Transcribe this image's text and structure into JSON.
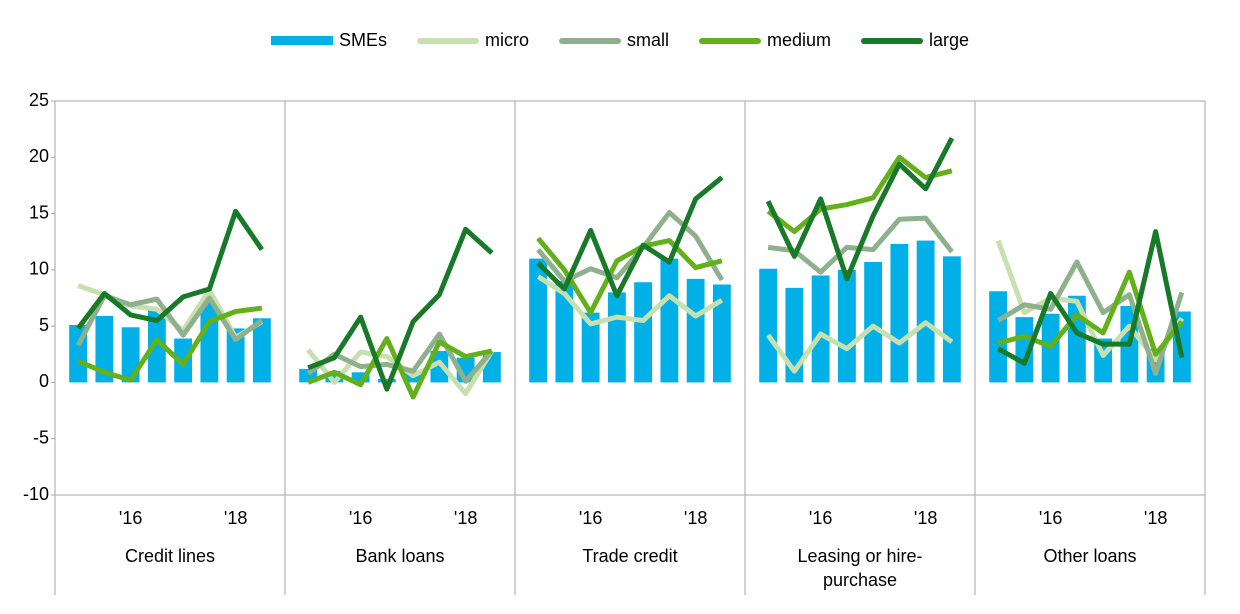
{
  "chart_data": {
    "type": "bar-line-panels",
    "panels": [
      "Credit lines",
      "Bank loans",
      "Trade credit",
      "Leasing or hire-purchase",
      "Other loans"
    ],
    "categories": [
      null,
      null,
      "'16",
      null,
      null,
      null,
      "'18",
      null
    ],
    "ylim": [
      -10,
      25
    ],
    "yticks": [
      -10,
      -5,
      0,
      5,
      10,
      15,
      20,
      25
    ],
    "grid": false,
    "series": [
      {
        "name": "SMEs",
        "kind": "bar",
        "color": "#00b0e6",
        "values": [
          [
            5.1,
            5.9,
            4.9,
            6.4,
            3.9,
            7.2,
            4.8,
            5.7
          ],
          [
            1.2,
            1.0,
            0.9,
            0.3,
            1.0,
            2.8,
            2.2,
            2.7
          ],
          [
            11.0,
            9.0,
            6.2,
            8.0,
            8.9,
            11.0,
            9.2,
            8.7
          ],
          [
            10.1,
            8.4,
            9.5,
            10.0,
            10.7,
            12.3,
            12.6,
            11.2
          ],
          [
            8.1,
            5.8,
            6.1,
            7.7,
            3.9,
            6.8,
            3.0,
            6.3
          ]
        ]
      },
      {
        "name": "micro",
        "kind": "line",
        "color": "#c8dfae",
        "values": [
          [
            8.6,
            7.8,
            6.8,
            6.5,
            4.6,
            8.2,
            4.0,
            5.4
          ],
          [
            2.9,
            0.0,
            2.7,
            2.3,
            0.6,
            1.8,
            -1.0,
            2.8
          ],
          [
            9.4,
            7.9,
            5.2,
            5.8,
            5.5,
            7.7,
            5.9,
            7.3
          ],
          [
            4.2,
            1.0,
            4.3,
            3.0,
            5.0,
            3.5,
            5.3,
            3.6
          ],
          [
            12.6,
            6.2,
            7.5,
            7.2,
            2.4,
            5.0,
            2.0,
            5.7
          ]
        ]
      },
      {
        "name": "small",
        "kind": "line",
        "color": "#8fb08c",
        "values": [
          [
            3.3,
            7.7,
            6.9,
            7.4,
            4.2,
            7.5,
            3.8,
            5.5
          ],
          [
            0.8,
            2.5,
            1.4,
            1.6,
            1.0,
            4.3,
            0.1,
            2.8
          ],
          [
            11.8,
            9.0,
            10.1,
            9.3,
            12.0,
            15.1,
            13.0,
            9.1
          ],
          [
            12.0,
            11.7,
            9.8,
            12.0,
            11.8,
            14.5,
            14.6,
            11.6
          ],
          [
            5.5,
            6.9,
            6.5,
            10.7,
            6.2,
            7.8,
            0.8,
            8.0
          ]
        ]
      },
      {
        "name": "medium",
        "kind": "line",
        "color": "#63b01a",
        "values": [
          [
            1.9,
            0.9,
            0.2,
            3.8,
            1.6,
            5.4,
            6.3,
            6.6
          ],
          [
            0.0,
            0.9,
            -0.2,
            3.9,
            -1.3,
            3.6,
            2.3,
            2.8
          ],
          [
            12.8,
            10.0,
            6.2,
            10.8,
            12.1,
            12.6,
            10.2,
            10.8
          ],
          [
            15.2,
            13.4,
            15.4,
            15.8,
            16.4,
            20.0,
            18.2,
            18.8
          ],
          [
            3.5,
            4.1,
            3.2,
            6.0,
            4.4,
            9.8,
            2.5,
            5.4
          ]
        ]
      },
      {
        "name": "large",
        "kind": "line",
        "color": "#187a28",
        "values": [
          [
            4.8,
            7.9,
            6.0,
            5.5,
            7.6,
            8.3,
            15.2,
            11.8
          ],
          [
            1.3,
            2.2,
            5.8,
            -0.6,
            5.4,
            7.8,
            13.6,
            11.5
          ],
          [
            10.6,
            8.3,
            13.5,
            7.7,
            12.2,
            10.7,
            16.3,
            18.2
          ],
          [
            16.1,
            11.2,
            16.3,
            9.2,
            14.8,
            19.4,
            17.2,
            21.7
          ],
          [
            3.0,
            1.7,
            7.9,
            4.4,
            3.4,
            3.4,
            13.4,
            2.2
          ]
        ]
      }
    ]
  }
}
